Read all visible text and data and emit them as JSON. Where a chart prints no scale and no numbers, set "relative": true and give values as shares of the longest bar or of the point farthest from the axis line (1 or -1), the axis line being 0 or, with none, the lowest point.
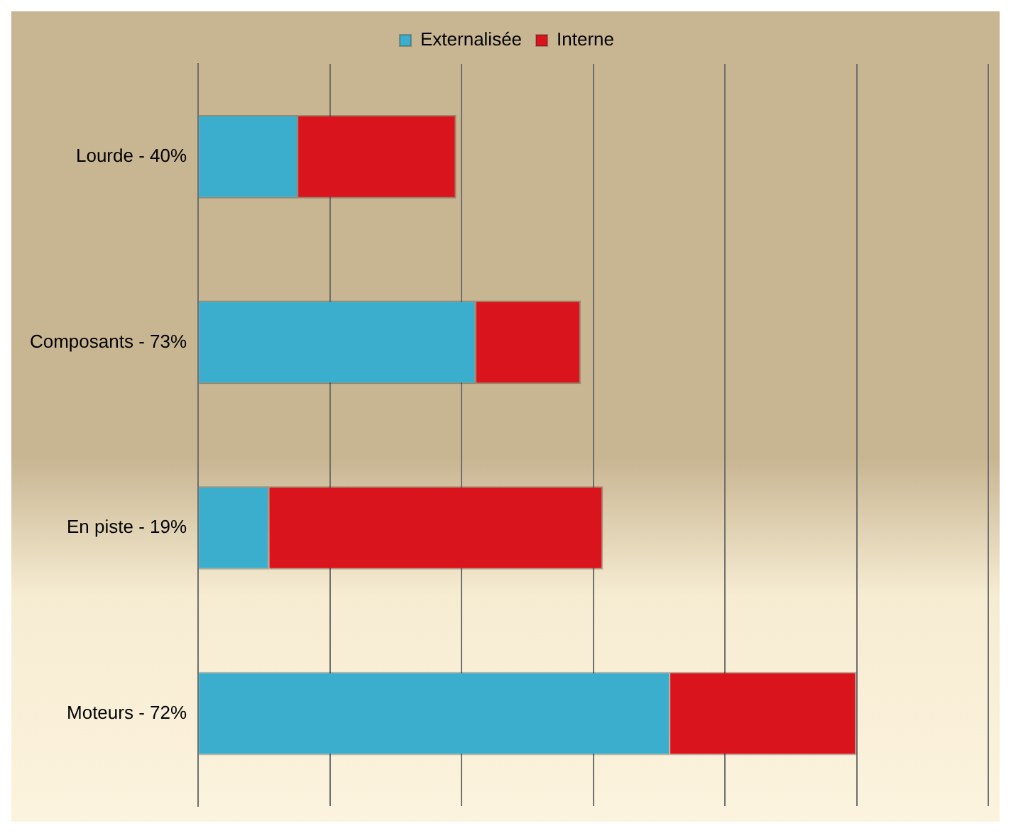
{
  "chart_data": {
    "type": "bar",
    "orientation": "horizontal",
    "stacked": true,
    "relative": true,
    "categories": [
      "Lourde - 40%",
      "Composants - 73%",
      "En piste - 19%",
      "Moteurs - 72%"
    ],
    "series": [
      {
        "name": "Externalisée",
        "color": "#3aaecc",
        "values": [
          0.152,
          0.422,
          0.108,
          0.717
        ]
      },
      {
        "name": "Interne",
        "color": "#d9141c",
        "values": [
          0.24,
          0.159,
          0.507,
          0.283
        ]
      }
    ],
    "legend": "top",
    "grid": "x"
  }
}
